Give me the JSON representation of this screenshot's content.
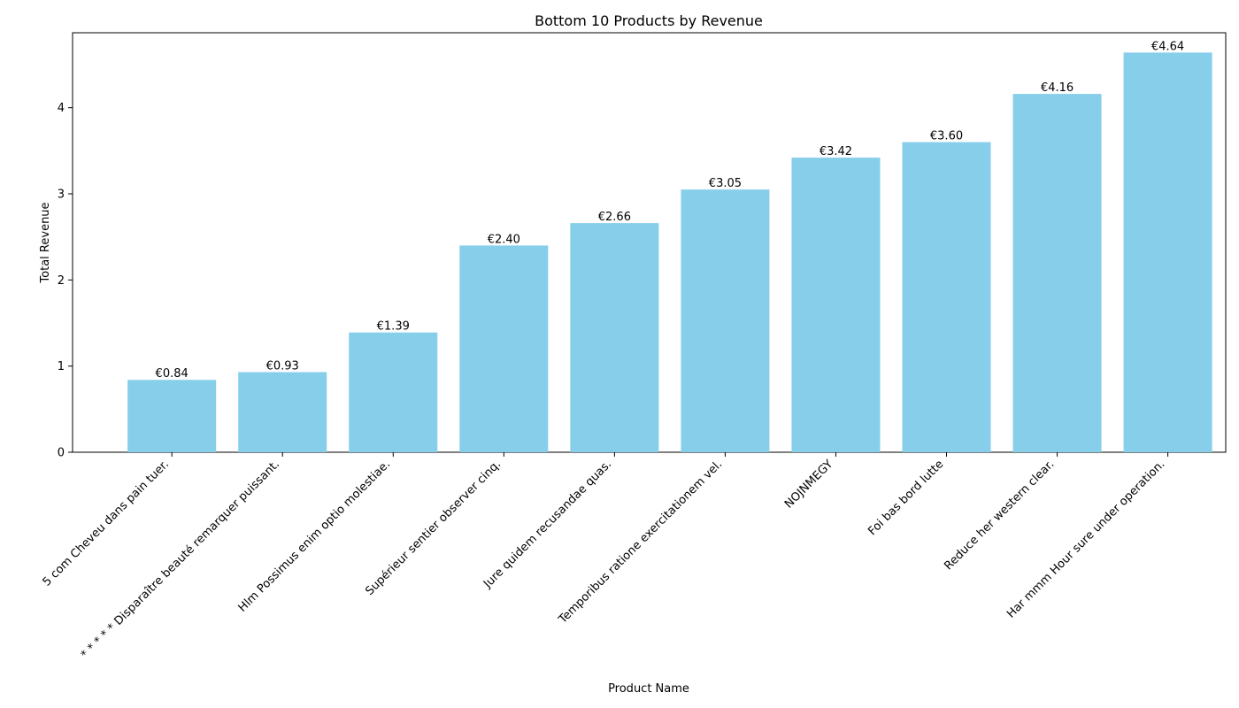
{
  "chart_data": {
    "type": "bar",
    "title": "Bottom 10 Products by Revenue",
    "xlabel": "Product Name",
    "ylabel": "Total Revenue",
    "ylim": [
      0,
      4.87
    ],
    "yticks": [
      0,
      1,
      2,
      3,
      4
    ],
    "grid": false,
    "legend": "none",
    "bar_color": "#87CEEB",
    "categories": [
      "5 com Cheveu dans pain tuer.",
      "* * * * * Disparaître beauté remarquer puissant.",
      "Hlm Possimus enim optio molestiae.",
      "Supérieur sentier observer cinq.",
      "Jure quidem recusandae quas.",
      "Temporibus ratione exercitationem vel.",
      "NOJNMEGY",
      "Foi bas bord lutte",
      "Reduce her western clear.",
      "Har mmm Hour sure under operation."
    ],
    "values": [
      0.84,
      0.93,
      1.39,
      2.4,
      2.66,
      3.05,
      3.42,
      3.6,
      4.16,
      4.64
    ],
    "data_labels": [
      "€0.84",
      "€0.93",
      "€1.39",
      "€2.40",
      "€2.66",
      "€3.05",
      "€3.42",
      "€3.60",
      "€4.16",
      "€4.64"
    ]
  }
}
